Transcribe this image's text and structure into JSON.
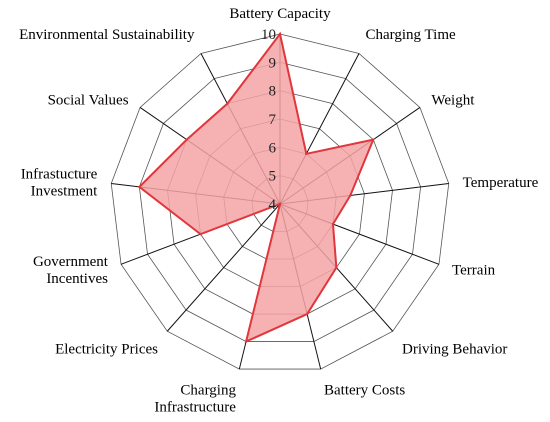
{
  "colors": {
    "grid": "#555555",
    "series_stroke": "#e0363c",
    "series_fill": "#f4a5a6"
  },
  "chart_data": {
    "type": "radar",
    "title": "",
    "categories": [
      "Battery Capacity",
      "Charging Time",
      "Weight",
      "Temperature",
      "Terrain",
      "Driving Behavior",
      "Battery Costs",
      "Charging Infrastructure",
      "Electricity Prices",
      "Government Incentives",
      "Infrastucture Investment",
      "Social Values",
      "Environmental Sustainability"
    ],
    "series": [
      {
        "values": [
          10,
          6,
          8,
          6.5,
          6,
          7,
          8,
          9,
          4,
          7,
          9,
          8,
          8
        ]
      }
    ],
    "rlim": [
      4,
      10
    ],
    "ticks": [
      4,
      5,
      6,
      7,
      8,
      9,
      10
    ],
    "grid": true,
    "legend": "none"
  }
}
